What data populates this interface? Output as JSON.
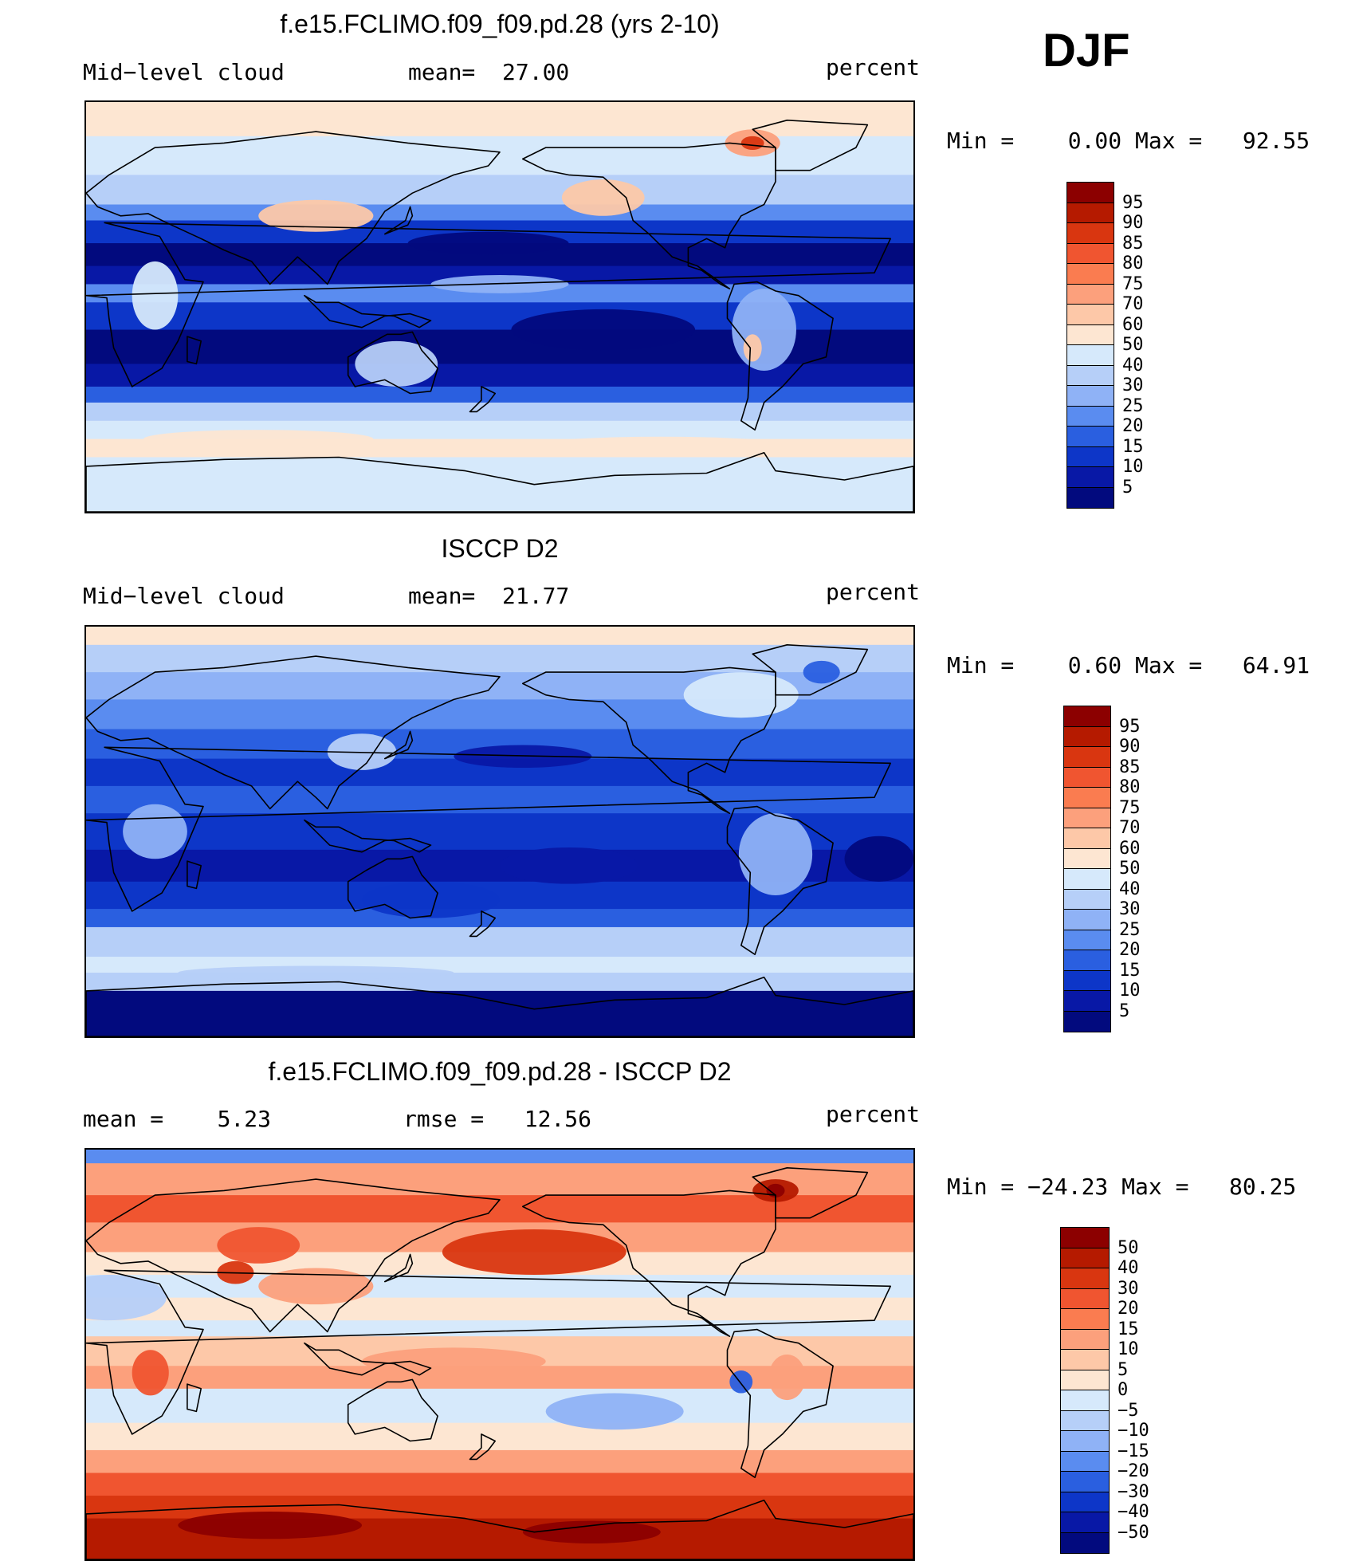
{
  "season": "DJF",
  "panels": [
    {
      "id": "model",
      "title": "f.e15.FCLIMO.f09_f09.pd.28 (yrs 2-10)",
      "left_label": "Mid−level cloud",
      "center_label": "mean=  27.00",
      "right_label": "percent",
      "minmax": "Min =    0.00 Max =   92.55",
      "colorbar_labels": [
        "95",
        "90",
        "85",
        "80",
        "75",
        "70",
        "60",
        "50",
        "40",
        "30",
        "25",
        "20",
        "15",
        "10",
        "5"
      ],
      "colorbar_colors": [
        "#8c0000",
        "#b51a00",
        "#d93610",
        "#f05530",
        "#fa7c50",
        "#fca07c",
        "#fdc8a8",
        "#fde6d2",
        "#d6e9fb",
        "#b6cff8",
        "#8fb2f6",
        "#5a8cf0",
        "#2a5fe0",
        "#0d36c8",
        "#0818a6",
        "#020a7e"
      ],
      "field": "model"
    },
    {
      "id": "obs",
      "title": "ISCCP D2",
      "left_label": "Mid−level cloud",
      "center_label": "mean=  21.77",
      "right_label": "percent",
      "minmax": "Min =    0.60 Max =   64.91",
      "colorbar_labels": [
        "95",
        "90",
        "85",
        "80",
        "75",
        "70",
        "60",
        "50",
        "40",
        "30",
        "25",
        "20",
        "15",
        "10",
        "5"
      ],
      "colorbar_colors": [
        "#8c0000",
        "#b51a00",
        "#d93610",
        "#f05530",
        "#fa7c50",
        "#fca07c",
        "#fdc8a8",
        "#fde6d2",
        "#d6e9fb",
        "#b6cff8",
        "#8fb2f6",
        "#5a8cf0",
        "#2a5fe0",
        "#0d36c8",
        "#0818a6",
        "#020a7e"
      ],
      "field": "obs"
    },
    {
      "id": "diff",
      "title": "f.e15.FCLIMO.f09_f09.pd.28 - ISCCP D2",
      "left_label": "mean =    5.23",
      "center_label": "rmse =   12.56",
      "right_label": "percent",
      "minmax": "Min = −24.23 Max =   80.25",
      "colorbar_labels": [
        "50",
        "40",
        "30",
        "20",
        "15",
        "10",
        "5",
        "0",
        "−5",
        "−10",
        "−15",
        "−20",
        "−30",
        "−40",
        "−50"
      ],
      "colorbar_colors": [
        "#8c0000",
        "#b51a00",
        "#d93610",
        "#f05530",
        "#fa7c50",
        "#fca07c",
        "#fdc8a8",
        "#fde6d2",
        "#d6e9fb",
        "#b6cff8",
        "#8fb2f6",
        "#5a8cf0",
        "#2a5fe0",
        "#0d36c8",
        "#0818a6",
        "#020a7e"
      ],
      "field": "diff"
    }
  ]
}
